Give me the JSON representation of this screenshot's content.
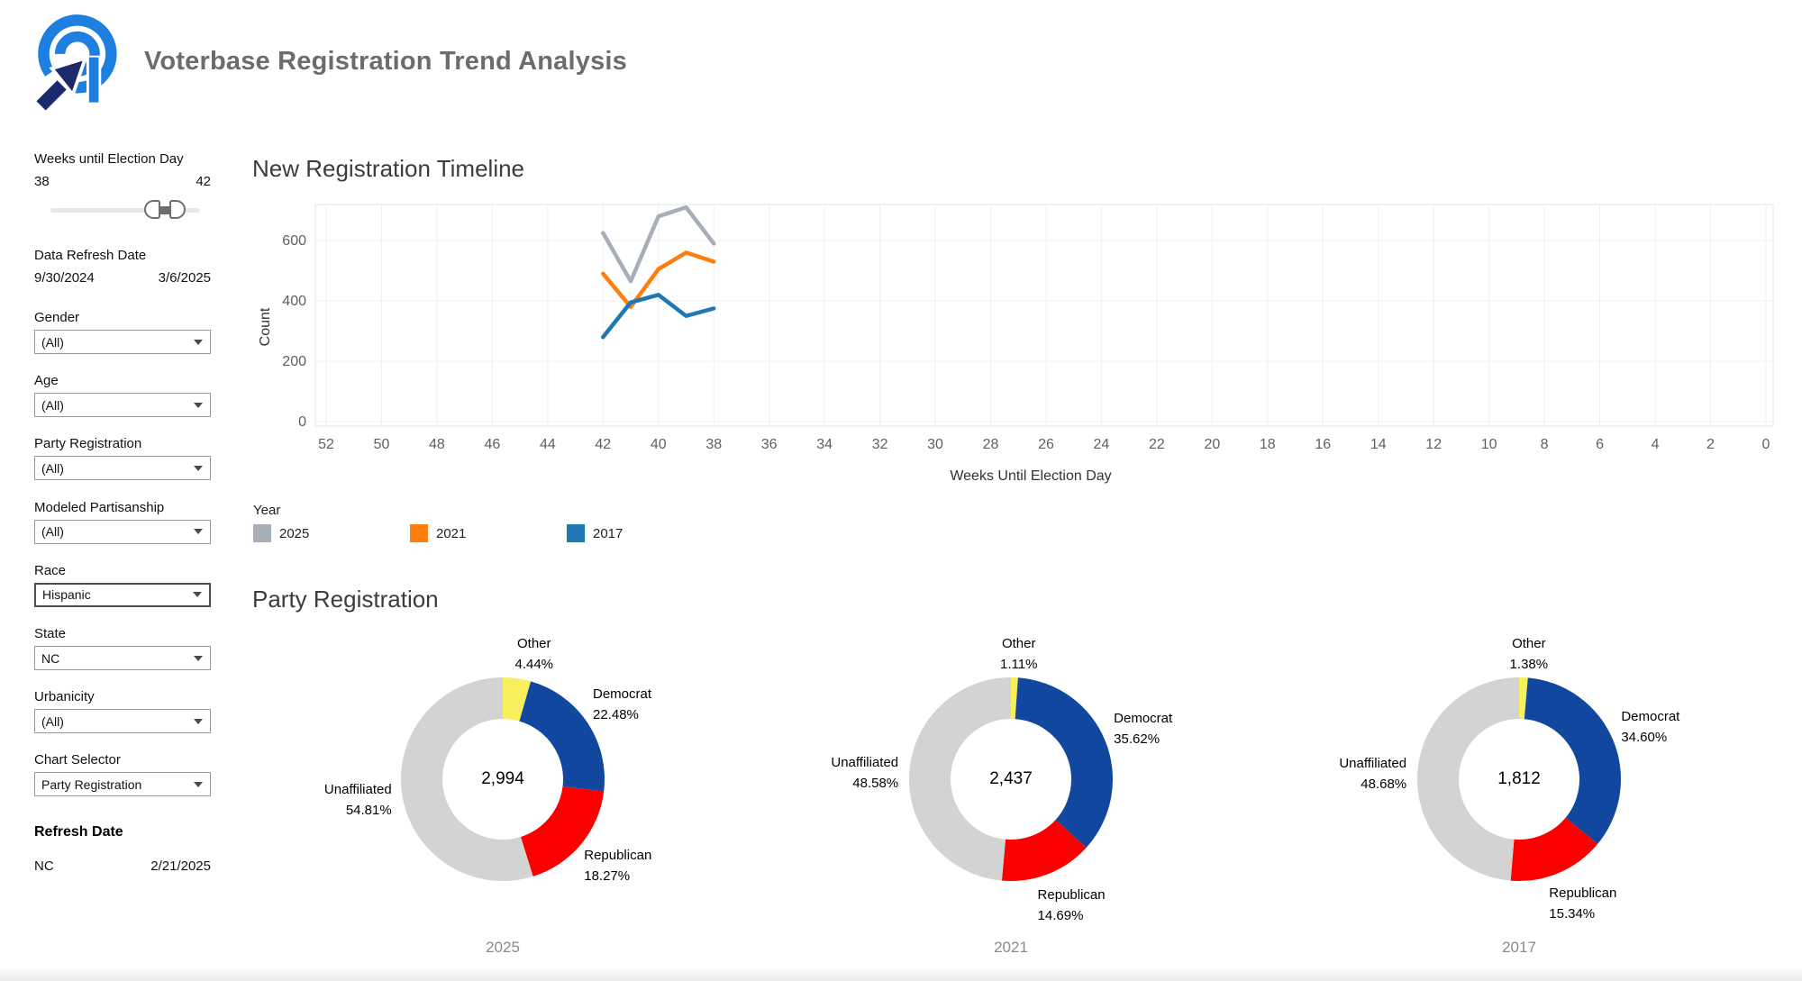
{
  "header": {
    "title": "Voterbase Registration Trend Analysis"
  },
  "sidebar": {
    "weeks_filter": {
      "label": "Weeks until Election Day",
      "min": "38",
      "max": "42"
    },
    "date_filter": {
      "label": "Data Refresh Date",
      "start": "9/30/2024",
      "end": "3/6/2025"
    },
    "filters": [
      {
        "id": "gender",
        "label": "Gender",
        "value": "(All)",
        "highlighted": false
      },
      {
        "id": "age",
        "label": "Age",
        "value": "(All)",
        "highlighted": false
      },
      {
        "id": "party-registration",
        "label": "Party Registration",
        "value": "(All)",
        "highlighted": false
      },
      {
        "id": "modeled-partisanship",
        "label": "Modeled Partisanship",
        "value": "(All)",
        "highlighted": false
      },
      {
        "id": "race",
        "label": "Race",
        "value": "Hispanic",
        "highlighted": true
      },
      {
        "id": "state",
        "label": "State",
        "value": "NC",
        "highlighted": false
      },
      {
        "id": "urbanicity",
        "label": "Urbanicity",
        "value": "(All)",
        "highlighted": false
      },
      {
        "id": "chart-selector",
        "label": "Chart Selector",
        "value": "Party Registration",
        "highlighted": false
      }
    ],
    "refresh": {
      "label": "Refresh Date",
      "state": "NC",
      "date": "2/21/2025"
    }
  },
  "timeline": {
    "title": "New Registration Timeline",
    "legend_title": "Year"
  },
  "party_section": {
    "title": "Party Registration"
  },
  "chart_data": [
    {
      "type": "line",
      "title": "New Registration Timeline",
      "xlabel": "Weeks Until Election Day",
      "ylabel": "Count",
      "x_axis_reversed": true,
      "x_ticks": [
        52,
        50,
        48,
        46,
        44,
        42,
        40,
        38,
        36,
        34,
        32,
        30,
        28,
        26,
        24,
        22,
        20,
        18,
        16,
        14,
        12,
        10,
        8,
        6,
        4,
        2,
        0
      ],
      "y_ticks": [
        0,
        200,
        400,
        600
      ],
      "ylim": [
        0,
        735
      ],
      "grid": true,
      "legend_position": "bottom-left",
      "x": [
        42,
        41,
        40,
        39,
        38
      ],
      "series": [
        {
          "name": "2025",
          "color": "#a7aeb8",
          "values": [
            625,
            465,
            680,
            710,
            590
          ]
        },
        {
          "name": "2021",
          "color": "#ff7f0e",
          "values": [
            490,
            380,
            505,
            560,
            530
          ]
        },
        {
          "name": "2017",
          "color": "#1f77b4",
          "values": [
            280,
            395,
            420,
            350,
            375
          ]
        }
      ]
    },
    {
      "type": "pie",
      "year": "2025",
      "center_total": "2,994",
      "slices": [
        {
          "label": "Other",
          "pct": 4.44,
          "pct_label": "4.44%",
          "color": "#f8ef5c"
        },
        {
          "label": "Democrat",
          "pct": 22.48,
          "pct_label": "22.48%",
          "color": "#11479e"
        },
        {
          "label": "Republican",
          "pct": 18.27,
          "pct_label": "18.27%",
          "color": "#fa0000"
        },
        {
          "label": "Unaffiliated",
          "pct": 54.81,
          "pct_label": "54.81%",
          "color": "#d3d3d3"
        }
      ]
    },
    {
      "type": "pie",
      "year": "2021",
      "center_total": "2,437",
      "slices": [
        {
          "label": "Other",
          "pct": 1.11,
          "pct_label": "1.11%",
          "color": "#f8ef5c"
        },
        {
          "label": "Democrat",
          "pct": 35.62,
          "pct_label": "35.62%",
          "color": "#11479e"
        },
        {
          "label": "Republican",
          "pct": 14.69,
          "pct_label": "14.69%",
          "color": "#fa0000"
        },
        {
          "label": "Unaffiliated",
          "pct": 48.58,
          "pct_label": "48.58%",
          "color": "#d3d3d3"
        }
      ]
    },
    {
      "type": "pie",
      "year": "2017",
      "center_total": "1,812",
      "slices": [
        {
          "label": "Other",
          "pct": 1.38,
          "pct_label": "1.38%",
          "color": "#f8ef5c"
        },
        {
          "label": "Democrat",
          "pct": 34.6,
          "pct_label": "34.60%",
          "color": "#11479e"
        },
        {
          "label": "Republican",
          "pct": 15.34,
          "pct_label": "15.34%",
          "color": "#fa0000"
        },
        {
          "label": "Unaffiliated",
          "pct": 48.68,
          "pct_label": "48.68%",
          "color": "#d3d3d3"
        }
      ]
    }
  ]
}
